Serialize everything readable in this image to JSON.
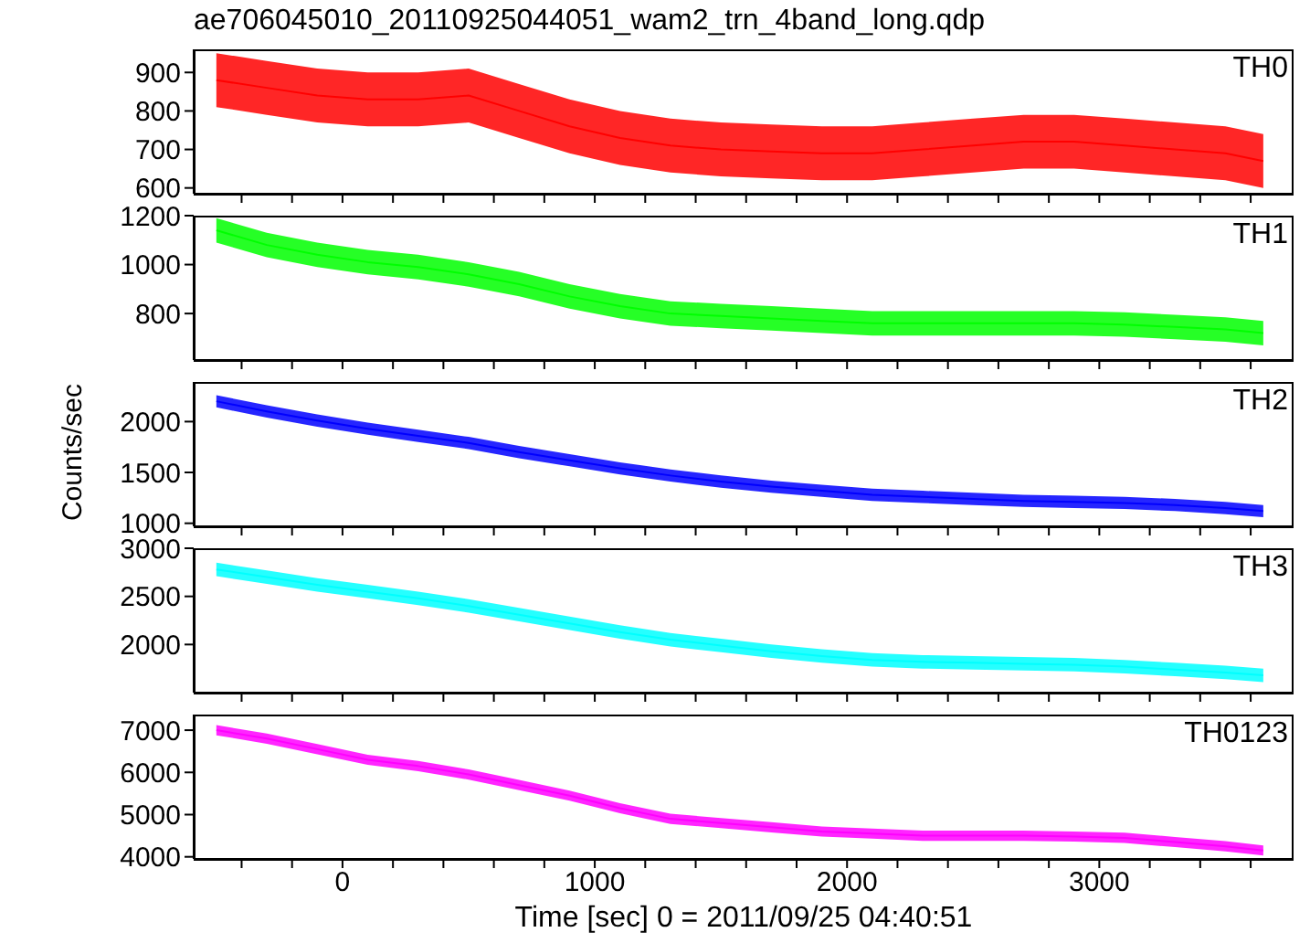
{
  "chart_data": [
    {
      "type": "line",
      "title": "ae706045010_20110925044051_wam2_trn_4band_long.qdp",
      "x": [
        -500,
        -300,
        -100,
        100,
        300,
        500,
        700,
        900,
        1100,
        1300,
        1500,
        1700,
        1900,
        2100,
        2300,
        2500,
        2700,
        2900,
        3100,
        3300,
        3500,
        3650
      ],
      "xlim": [
        -590,
        3770
      ],
      "xticks": [
        {
          "value": -400,
          "label": null
        },
        {
          "value": -200,
          "label": null
        },
        0,
        {
          "value": 200,
          "label": null
        },
        {
          "value": 400,
          "label": null
        },
        {
          "value": 600,
          "label": null
        },
        {
          "value": 800,
          "label": null
        },
        1000,
        {
          "value": 1200,
          "label": null
        },
        {
          "value": 1400,
          "label": null
        },
        {
          "value": 1600,
          "label": null
        },
        {
          "value": 1800,
          "label": null
        },
        2000,
        {
          "value": 2200,
          "label": null
        },
        {
          "value": 2400,
          "label": null
        },
        {
          "value": 2600,
          "label": null
        },
        {
          "value": 2800,
          "label": null
        },
        3000,
        {
          "value": 3200,
          "label": null
        },
        {
          "value": 3400,
          "label": null
        },
        {
          "value": 3600,
          "label": null
        }
      ],
      "ylim": [
        585,
        960
      ],
      "yticks": [
        600,
        700,
        800,
        900
      ],
      "tick_labels": "y",
      "series": [
        {
          "name": "TH0",
          "color": "#ff0000",
          "values": [
            880,
            860,
            840,
            830,
            830,
            840,
            800,
            760,
            730,
            710,
            700,
            695,
            690,
            690,
            700,
            710,
            720,
            720,
            710,
            700,
            690,
            670
          ],
          "lower": [
            810,
            790,
            770,
            760,
            760,
            770,
            730,
            690,
            660,
            640,
            630,
            625,
            620,
            620,
            630,
            640,
            650,
            650,
            640,
            630,
            620,
            600
          ],
          "upper": [
            950,
            930,
            910,
            900,
            900,
            910,
            870,
            830,
            800,
            780,
            770,
            765,
            760,
            760,
            770,
            780,
            790,
            790,
            780,
            770,
            760,
            740
          ]
        }
      ]
    },
    {
      "type": "line",
      "x": [
        -500,
        -300,
        -100,
        100,
        300,
        500,
        700,
        900,
        1100,
        1300,
        1500,
        1700,
        1900,
        2100,
        2300,
        2500,
        2700,
        2900,
        3100,
        3300,
        3500,
        3650
      ],
      "xlim": [
        -590,
        3770
      ],
      "xticks": [
        {
          "value": -400,
          "label": null
        },
        {
          "value": -200,
          "label": null
        },
        0,
        {
          "value": 200,
          "label": null
        },
        {
          "value": 400,
          "label": null
        },
        {
          "value": 600,
          "label": null
        },
        {
          "value": 800,
          "label": null
        },
        1000,
        {
          "value": 1200,
          "label": null
        },
        {
          "value": 1400,
          "label": null
        },
        {
          "value": 1600,
          "label": null
        },
        {
          "value": 1800,
          "label": null
        },
        2000,
        {
          "value": 2200,
          "label": null
        },
        {
          "value": 2400,
          "label": null
        },
        {
          "value": 2600,
          "label": null
        },
        {
          "value": 2800,
          "label": null
        },
        3000,
        {
          "value": 3200,
          "label": null
        },
        {
          "value": 3400,
          "label": null
        },
        {
          "value": 3600,
          "label": null
        }
      ],
      "ylim": [
        610,
        1200
      ],
      "yticks": [
        800,
        1000,
        1200
      ],
      "tick_labels": "y",
      "series": [
        {
          "name": "TH1",
          "color": "#00ff00",
          "values": [
            1140,
            1080,
            1040,
            1010,
            990,
            960,
            920,
            870,
            830,
            800,
            790,
            780,
            770,
            760,
            760,
            760,
            760,
            760,
            755,
            745,
            735,
            720
          ],
          "lower": [
            1090,
            1030,
            990,
            960,
            940,
            910,
            870,
            820,
            780,
            750,
            740,
            730,
            720,
            710,
            710,
            710,
            710,
            710,
            705,
            695,
            685,
            670
          ],
          "upper": [
            1190,
            1130,
            1090,
            1060,
            1040,
            1010,
            970,
            920,
            880,
            850,
            840,
            830,
            820,
            810,
            810,
            810,
            810,
            810,
            805,
            795,
            785,
            770
          ]
        }
      ]
    },
    {
      "type": "line",
      "ylabel": "Counts/sec",
      "x": [
        -500,
        -300,
        -100,
        100,
        300,
        500,
        700,
        900,
        1100,
        1300,
        1500,
        1700,
        1900,
        2100,
        2300,
        2500,
        2700,
        2900,
        3100,
        3300,
        3500,
        3650
      ],
      "xlim": [
        -590,
        3770
      ],
      "xticks": [
        {
          "value": -400,
          "label": null
        },
        {
          "value": -200,
          "label": null
        },
        0,
        {
          "value": 200,
          "label": null
        },
        {
          "value": 400,
          "label": null
        },
        {
          "value": 600,
          "label": null
        },
        {
          "value": 800,
          "label": null
        },
        1000,
        {
          "value": 1200,
          "label": null
        },
        {
          "value": 1400,
          "label": null
        },
        {
          "value": 1600,
          "label": null
        },
        {
          "value": 1800,
          "label": null
        },
        2000,
        {
          "value": 2200,
          "label": null
        },
        {
          "value": 2400,
          "label": null
        },
        {
          "value": 2600,
          "label": null
        },
        {
          "value": 2800,
          "label": null
        },
        3000,
        {
          "value": 3200,
          "label": null
        },
        {
          "value": 3400,
          "label": null
        },
        {
          "value": 3600,
          "label": null
        }
      ],
      "ylim": [
        970,
        2390
      ],
      "yticks": [
        1000,
        1500,
        2000
      ],
      "tick_labels": "y",
      "series": [
        {
          "name": "TH2",
          "color": "#0000ff",
          "values": [
            2200,
            2100,
            2010,
            1930,
            1860,
            1790,
            1700,
            1620,
            1540,
            1470,
            1410,
            1360,
            1320,
            1280,
            1260,
            1240,
            1220,
            1210,
            1200,
            1180,
            1150,
            1120
          ],
          "lower": [
            2140,
            2040,
            1950,
            1870,
            1800,
            1730,
            1640,
            1560,
            1480,
            1410,
            1350,
            1300,
            1260,
            1220,
            1200,
            1180,
            1160,
            1150,
            1140,
            1120,
            1090,
            1060
          ],
          "upper": [
            2260,
            2160,
            2070,
            1990,
            1920,
            1850,
            1760,
            1680,
            1600,
            1530,
            1470,
            1420,
            1380,
            1340,
            1320,
            1300,
            1280,
            1270,
            1260,
            1240,
            1210,
            1180
          ]
        }
      ]
    },
    {
      "type": "line",
      "x": [
        -500,
        -300,
        -100,
        100,
        300,
        500,
        700,
        900,
        1100,
        1300,
        1500,
        1700,
        1900,
        2100,
        2300,
        2500,
        2700,
        2900,
        3100,
        3300,
        3500,
        3650
      ],
      "xlim": [
        -590,
        3770
      ],
      "xticks": [
        {
          "value": -400,
          "label": null
        },
        {
          "value": -200,
          "label": null
        },
        0,
        {
          "value": 200,
          "label": null
        },
        {
          "value": 400,
          "label": null
        },
        {
          "value": 600,
          "label": null
        },
        {
          "value": 800,
          "label": null
        },
        1000,
        {
          "value": 1200,
          "label": null
        },
        {
          "value": 1400,
          "label": null
        },
        {
          "value": 1600,
          "label": null
        },
        {
          "value": 1800,
          "label": null
        },
        2000,
        {
          "value": 2200,
          "label": null
        },
        {
          "value": 2400,
          "label": null
        },
        {
          "value": 2600,
          "label": null
        },
        {
          "value": 2800,
          "label": null
        },
        3000,
        {
          "value": 3200,
          "label": null
        },
        {
          "value": 3400,
          "label": null
        },
        {
          "value": 3600,
          "label": null
        }
      ],
      "ylim": [
        1500,
        3000
      ],
      "yticks": [
        2000,
        2500,
        3000
      ],
      "tick_labels": "y",
      "series": [
        {
          "name": "TH3",
          "color": "#00ffff",
          "values": [
            2780,
            2700,
            2620,
            2550,
            2480,
            2400,
            2310,
            2220,
            2130,
            2050,
            1990,
            1930,
            1880,
            1840,
            1820,
            1810,
            1800,
            1790,
            1770,
            1740,
            1710,
            1680
          ],
          "lower": [
            2710,
            2630,
            2550,
            2480,
            2410,
            2330,
            2240,
            2150,
            2060,
            1980,
            1920,
            1860,
            1810,
            1770,
            1750,
            1740,
            1730,
            1720,
            1700,
            1670,
            1640,
            1610
          ],
          "upper": [
            2850,
            2770,
            2690,
            2620,
            2550,
            2470,
            2380,
            2290,
            2200,
            2120,
            2060,
            2000,
            1950,
            1910,
            1890,
            1880,
            1870,
            1860,
            1840,
            1810,
            1780,
            1750
          ]
        }
      ]
    },
    {
      "type": "line",
      "xlabel": "Time [sec] 0 = 2011/09/25 04:40:51",
      "x": [
        -500,
        -300,
        -100,
        100,
        300,
        500,
        700,
        900,
        1100,
        1300,
        1500,
        1700,
        1900,
        2100,
        2300,
        2500,
        2700,
        2900,
        3100,
        3300,
        3500,
        3650
      ],
      "xlim": [
        -590,
        3770
      ],
      "xticks": [
        {
          "value": -400,
          "label": null
        },
        {
          "value": -200,
          "label": null
        },
        0,
        {
          "value": 200,
          "label": null
        },
        {
          "value": 400,
          "label": null
        },
        {
          "value": 600,
          "label": null
        },
        {
          "value": 800,
          "label": null
        },
        1000,
        {
          "value": 1200,
          "label": null
        },
        {
          "value": 1400,
          "label": null
        },
        {
          "value": 1600,
          "label": null
        },
        {
          "value": 1800,
          "label": null
        },
        2000,
        {
          "value": 2200,
          "label": null
        },
        {
          "value": 2400,
          "label": null
        },
        {
          "value": 2600,
          "label": null
        },
        {
          "value": 2800,
          "label": null
        },
        3000,
        {
          "value": 3200,
          "label": null
        },
        {
          "value": 3400,
          "label": null
        },
        {
          "value": 3600,
          "label": null
        }
      ],
      "ylim": [
        3950,
        7370
      ],
      "yticks": [
        4000,
        5000,
        6000,
        7000
      ],
      "series": [
        {
          "name": "TH0123",
          "color": "#ff00ff",
          "values": [
            7000,
            6800,
            6550,
            6300,
            6150,
            5950,
            5700,
            5450,
            5150,
            4900,
            4800,
            4700,
            4600,
            4550,
            4500,
            4500,
            4500,
            4480,
            4450,
            4350,
            4250,
            4150
          ],
          "lower": [
            6880,
            6680,
            6430,
            6180,
            6030,
            5830,
            5580,
            5330,
            5030,
            4780,
            4680,
            4580,
            4480,
            4430,
            4380,
            4380,
            4380,
            4360,
            4330,
            4230,
            4130,
            4030
          ],
          "upper": [
            7120,
            6920,
            6670,
            6420,
            6270,
            6070,
            5820,
            5570,
            5270,
            5020,
            4920,
            4820,
            4720,
            4670,
            4620,
            4620,
            4620,
            4600,
            4570,
            4470,
            4370,
            4270
          ]
        }
      ]
    }
  ]
}
